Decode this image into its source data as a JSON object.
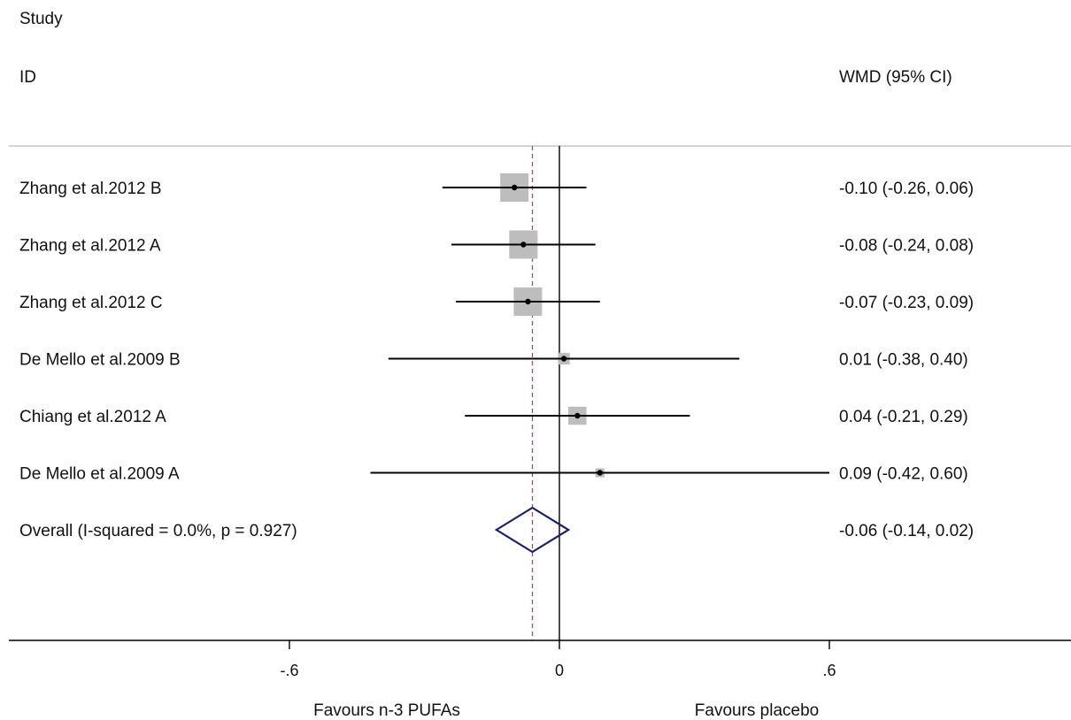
{
  "chart_data": {
    "type": "forest",
    "header": {
      "study_label": "Study",
      "id_label": "ID",
      "effect_label": "WMD (95% CI)"
    },
    "studies": [
      {
        "label": "Zhang et al.2012 B",
        "estimate": -0.1,
        "ci_low": -0.26,
        "ci_high": 0.06,
        "text": "-0.10 (-0.26, 0.06)",
        "weight": 1.0
      },
      {
        "label": "Zhang et al.2012 A",
        "estimate": -0.08,
        "ci_low": -0.24,
        "ci_high": 0.08,
        "text": "-0.08 (-0.24, 0.08)",
        "weight": 1.0
      },
      {
        "label": "Zhang et al.2012 C",
        "estimate": -0.07,
        "ci_low": -0.23,
        "ci_high": 0.09,
        "text": "-0.07 (-0.23, 0.09)",
        "weight": 1.0
      },
      {
        "label": "De Mello et al.2009 B",
        "estimate": 0.01,
        "ci_low": -0.38,
        "ci_high": 0.4,
        "text": "0.01 (-0.38, 0.40)",
        "weight": 0.17
      },
      {
        "label": "Chiang et al.2012 A",
        "estimate": 0.04,
        "ci_low": -0.21,
        "ci_high": 0.29,
        "text": "0.04 (-0.21, 0.29)",
        "weight": 0.41
      },
      {
        "label": "De Mello et al.2009 A",
        "estimate": 0.09,
        "ci_low": -0.42,
        "ci_high": 0.6,
        "text": "0.09 (-0.42, 0.60)",
        "weight": 0.1
      }
    ],
    "overall": {
      "label": "Overall  (I-squared = 0.0%, p = 0.927)",
      "estimate": -0.06,
      "ci_low": -0.14,
      "ci_high": 0.02,
      "text": "-0.06 (-0.14, 0.02)"
    },
    "x_ticks": [
      {
        "value": -0.6,
        "label": "-.6"
      },
      {
        "value": 0,
        "label": "0"
      },
      {
        "value": 0.6,
        "label": ".6"
      }
    ],
    "favours_left": "Favours n-3 PUFAs",
    "favours_right": "Favours placebo",
    "null_line": 0,
    "colors": {
      "box": "#bdbdbd",
      "line": "#000000",
      "diamond": "#1a1f6e",
      "overall_line": "#b5454f",
      "separator": "#bbbbbb"
    }
  }
}
